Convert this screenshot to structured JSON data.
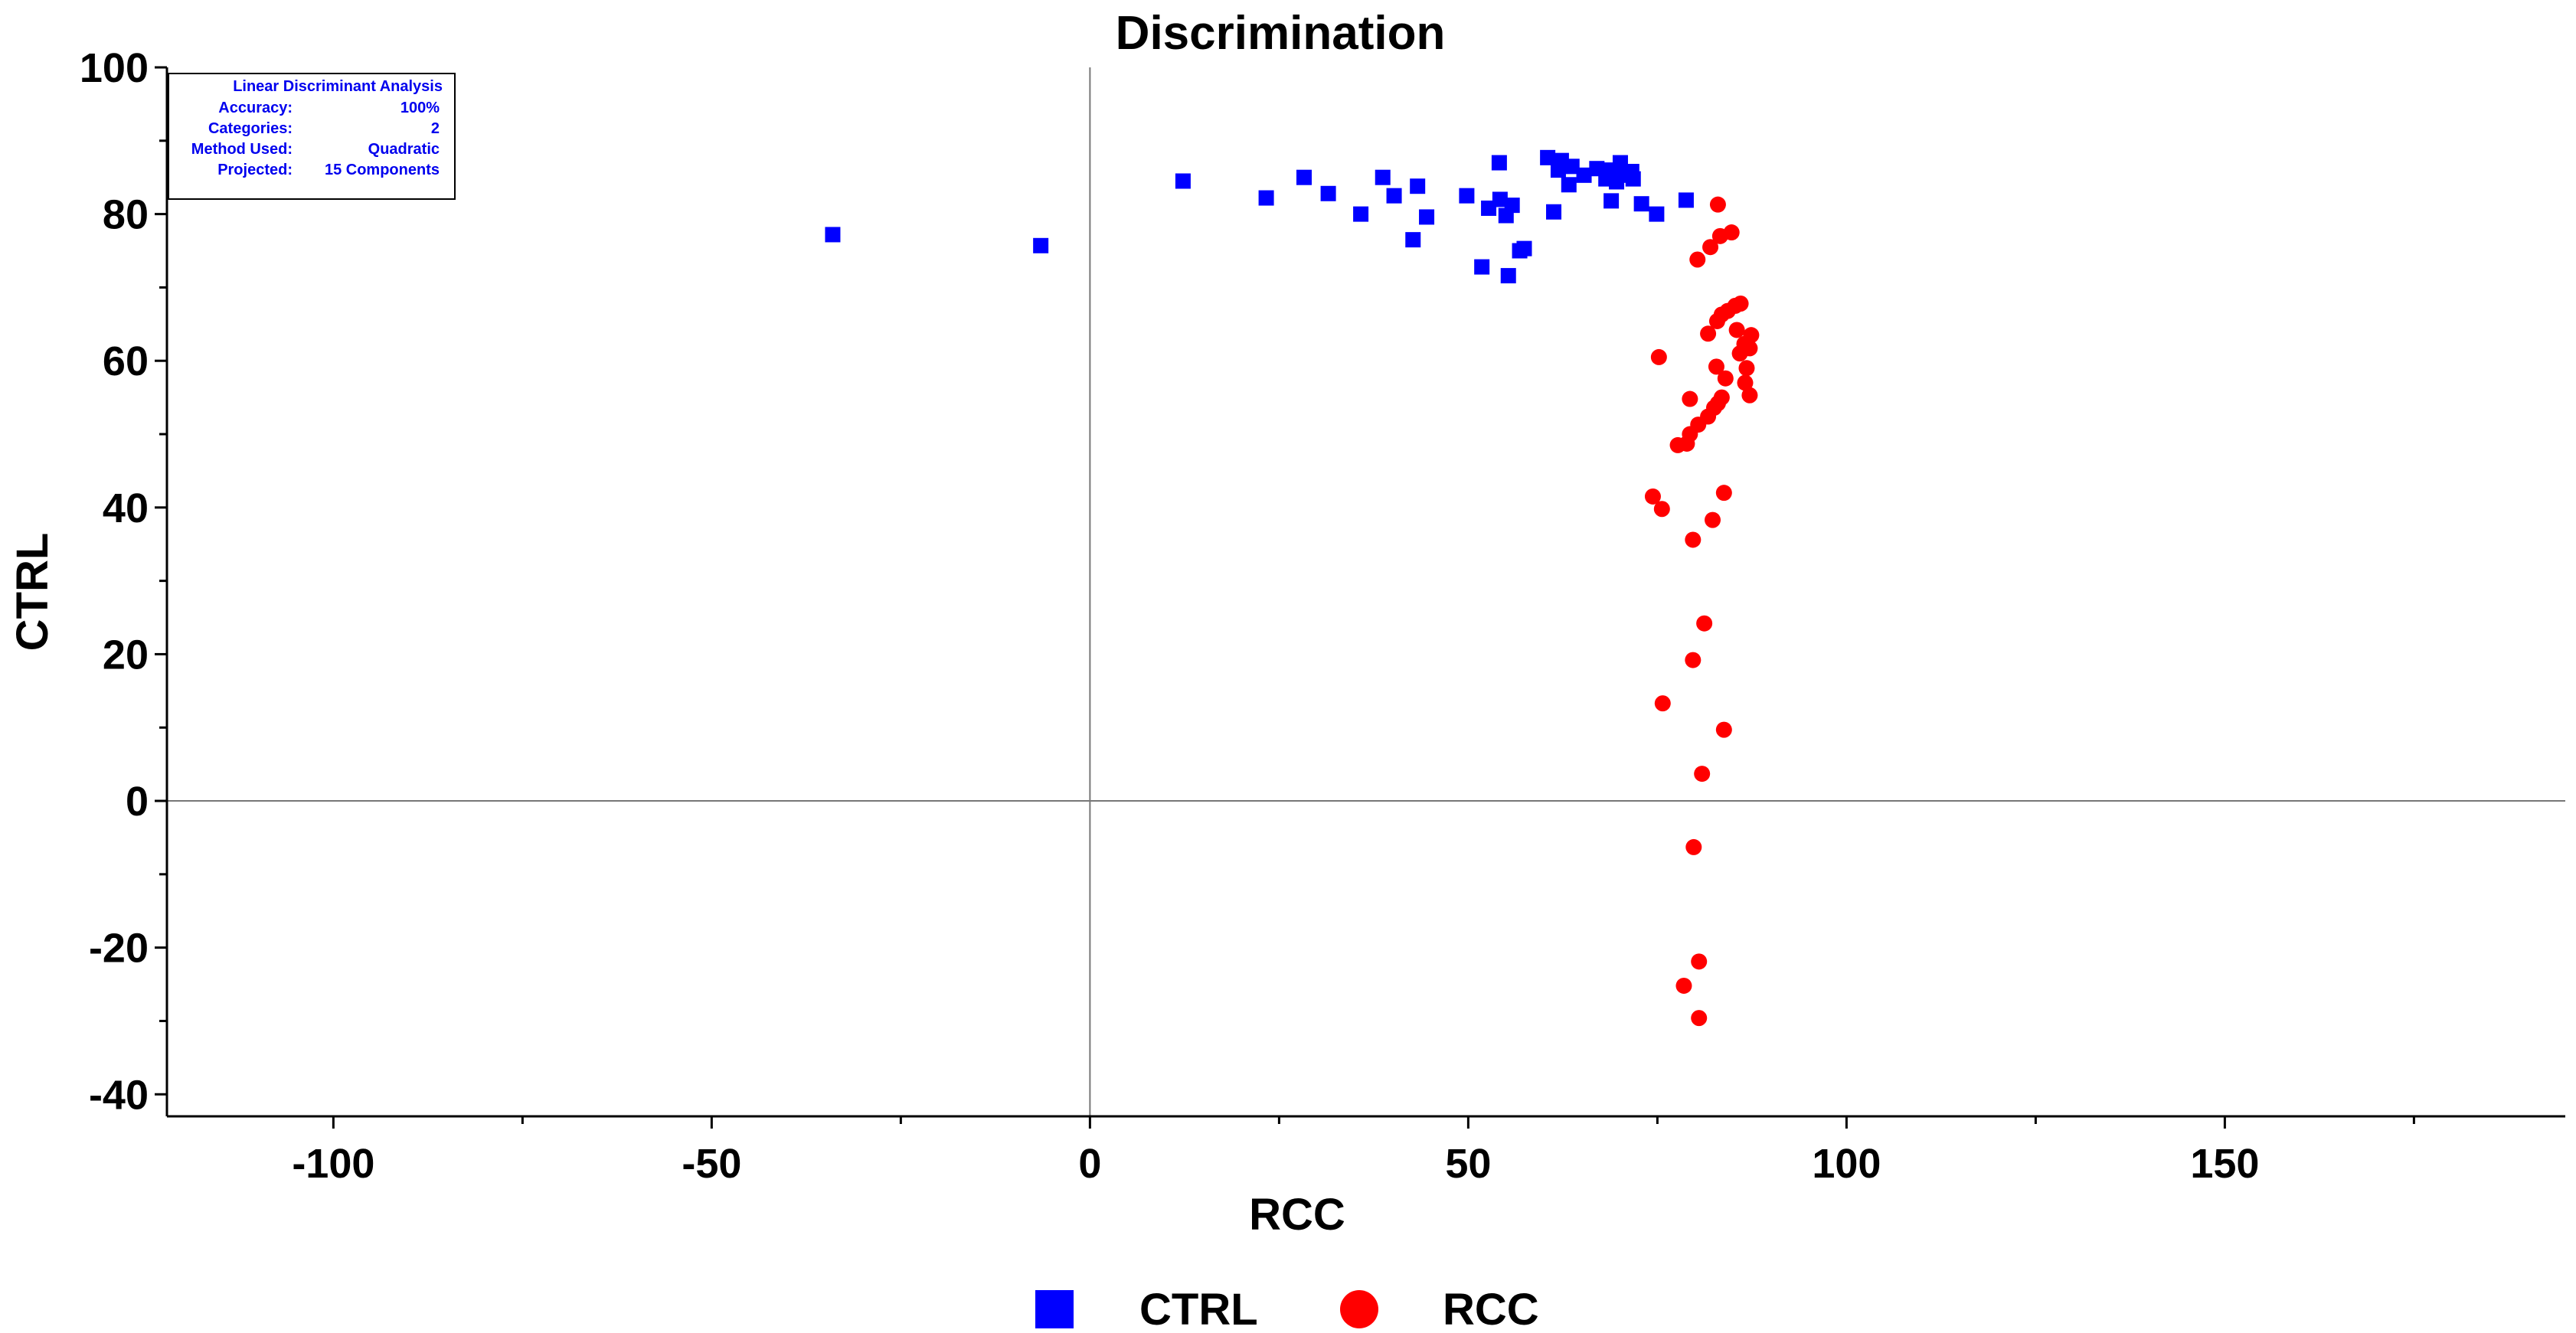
{
  "chart_data": {
    "type": "scatter",
    "title": "Discrimination",
    "xlabel": "RCC",
    "ylabel": "CTRL",
    "xlim": [
      -122,
      195
    ],
    "ylim": [
      -43,
      100
    ],
    "xticks": [
      -100,
      -50,
      0,
      50,
      100,
      150
    ],
    "yticks": [
      100,
      80,
      60,
      40,
      20,
      0,
      -20,
      -40
    ],
    "x_minor_step": 25,
    "y_minor_step": 10,
    "zero_lines": true,
    "legend_position": "bottom-center",
    "info_box": {
      "heading": "Linear Discriminant Analysis",
      "rows": [
        {
          "label": "Accuracy:",
          "value": "100%"
        },
        {
          "label": "Categories:",
          "value": "2"
        },
        {
          "label": "Method Used:",
          "value": "Quadratic"
        },
        {
          "label": "Projected:",
          "value": "15 Components"
        }
      ],
      "color": "#0000ee"
    },
    "series": [
      {
        "name": "CTRL",
        "marker": "square",
        "color": "#0000ff",
        "points": [
          [
            -34,
            77.2
          ],
          [
            -6.5,
            75.7
          ],
          [
            12.3,
            84.5
          ],
          [
            23.3,
            82.2
          ],
          [
            28.3,
            85.0
          ],
          [
            31.5,
            82.8
          ],
          [
            35.8,
            80.0
          ],
          [
            38.7,
            85.0
          ],
          [
            40.2,
            82.5
          ],
          [
            42.7,
            76.5
          ],
          [
            43.3,
            83.8
          ],
          [
            44.5,
            79.6
          ],
          [
            49.8,
            82.5
          ],
          [
            51.8,
            72.8
          ],
          [
            52.7,
            80.8
          ],
          [
            54.1,
            87.0
          ],
          [
            54.2,
            82.0
          ],
          [
            55.0,
            79.8
          ],
          [
            55.3,
            71.6
          ],
          [
            55.8,
            81.2
          ],
          [
            56.8,
            75.0
          ],
          [
            57.4,
            75.3
          ],
          [
            60.5,
            87.7
          ],
          [
            61.3,
            80.3
          ],
          [
            61.9,
            86.0
          ],
          [
            62.3,
            87.3
          ],
          [
            63.3,
            84.0
          ],
          [
            63.7,
            86.5
          ],
          [
            65.3,
            85.3
          ],
          [
            67.0,
            86.2
          ],
          [
            68.2,
            84.8
          ],
          [
            68.6,
            86.0
          ],
          [
            68.9,
            81.8
          ],
          [
            69.6,
            84.4
          ],
          [
            70.1,
            87.0
          ],
          [
            70.3,
            85.3
          ],
          [
            71.6,
            85.8
          ],
          [
            71.8,
            84.8
          ],
          [
            72.9,
            81.4
          ],
          [
            74.9,
            80.0
          ],
          [
            78.8,
            81.9
          ]
        ]
      },
      {
        "name": "RCC",
        "marker": "circle",
        "color": "#ff0000",
        "points": [
          [
            83.0,
            81.3
          ],
          [
            84.8,
            77.5
          ],
          [
            83.3,
            77.0
          ],
          [
            82.0,
            75.5
          ],
          [
            80.3,
            73.8
          ],
          [
            86.0,
            67.8
          ],
          [
            85.3,
            67.5
          ],
          [
            84.3,
            66.8
          ],
          [
            83.5,
            66.3
          ],
          [
            82.9,
            65.4
          ],
          [
            85.5,
            64.2
          ],
          [
            81.7,
            63.7
          ],
          [
            87.4,
            63.5
          ],
          [
            86.5,
            62.3
          ],
          [
            87.2,
            61.7
          ],
          [
            85.9,
            61.0
          ],
          [
            75.2,
            60.5
          ],
          [
            82.8,
            59.2
          ],
          [
            86.8,
            59.0
          ],
          [
            84.0,
            57.6
          ],
          [
            86.6,
            57.0
          ],
          [
            87.2,
            55.3
          ],
          [
            83.5,
            55.0
          ],
          [
            79.3,
            54.8
          ],
          [
            83.0,
            54.2
          ],
          [
            82.5,
            53.6
          ],
          [
            81.7,
            52.4
          ],
          [
            80.4,
            51.3
          ],
          [
            79.3,
            50.0
          ],
          [
            78.9,
            48.7
          ],
          [
            77.7,
            48.5
          ],
          [
            74.4,
            41.5
          ],
          [
            83.8,
            42.0
          ],
          [
            75.6,
            39.8
          ],
          [
            82.3,
            38.3
          ],
          [
            79.7,
            35.6
          ],
          [
            81.2,
            24.2
          ],
          [
            79.7,
            19.2
          ],
          [
            75.7,
            13.3
          ],
          [
            83.8,
            9.7
          ],
          [
            80.9,
            3.7
          ],
          [
            79.8,
            -6.3
          ],
          [
            80.5,
            -21.9
          ],
          [
            78.5,
            -25.2
          ],
          [
            80.5,
            -29.6
          ]
        ]
      }
    ]
  }
}
